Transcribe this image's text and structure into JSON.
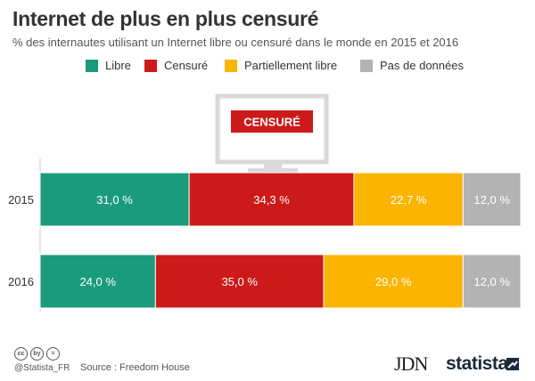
{
  "header": {
    "title": "Internet de plus en plus censuré",
    "subtitle": "% des internautes utilisant un Internet libre ou censuré dans le monde en 2015 et 2016"
  },
  "monitor": {
    "label": "CENSURÉ",
    "color": "#cc1a1a"
  },
  "chart_data": {
    "type": "bar",
    "orientation": "horizontal",
    "stacked": true,
    "categories": [
      "2015",
      "2016"
    ],
    "series": [
      {
        "name": "Libre",
        "color": "#1a9b7c",
        "values": [
          31.0,
          24.0
        ],
        "labels": [
          "31,0 %",
          "24,0 %"
        ]
      },
      {
        "name": "Censuré",
        "color": "#cc1a1a",
        "values": [
          34.3,
          35.0
        ],
        "labels": [
          "34,3 %",
          "35,0 %"
        ]
      },
      {
        "name": "Partiellement libre",
        "color": "#fbb400",
        "values": [
          22.7,
          29.0
        ],
        "labels": [
          "22,7 %",
          "29,0 %"
        ]
      },
      {
        "name": "Pas de données",
        "color": "#b3b3b3",
        "values": [
          12.0,
          12.0
        ],
        "labels": [
          "12,0 %",
          "12,0 %"
        ]
      }
    ],
    "legend_position": "top",
    "grid": false
  },
  "footer": {
    "cc_icons": [
      "cc",
      "by",
      "="
    ],
    "handle": "@Statista_FR",
    "source": "Source : Freedom House",
    "jdn": "JDN",
    "statista": "statista"
  }
}
